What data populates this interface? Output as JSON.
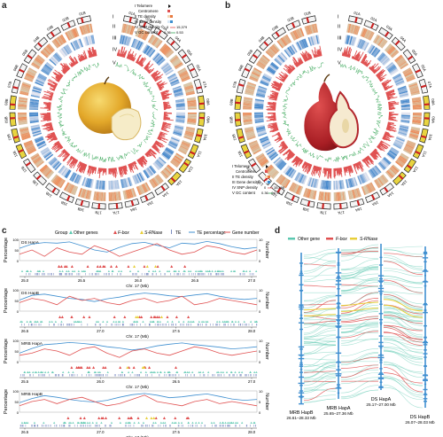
{
  "panel_labels": {
    "a": "a",
    "b": "b",
    "c": "c",
    "d": "d"
  },
  "colors": {
    "orange": "#e88a55",
    "blue": "#3f8fd0",
    "red": "#e05050",
    "green": "#3ba85a",
    "teal": "#5cc8b0",
    "yellow": "#e8cf3a",
    "gray": "#999999"
  },
  "circos_a": {
    "chromosomes": [
      "01A",
      "02A",
      "03A",
      "04A",
      "05A",
      "06A",
      "07A",
      "08A",
      "09A",
      "10A",
      "11A",
      "12A",
      "13A",
      "14A",
      "15A",
      "16A",
      "17A",
      "17B",
      "16B",
      "15B",
      "14B",
      "13B",
      "12B",
      "11B",
      "10B",
      "09B",
      "08B",
      "07B",
      "06B",
      "05B",
      "04B",
      "03B",
      "02B",
      "01B"
    ],
    "ring_labels": [
      "I",
      "II",
      "III",
      "IV",
      "V"
    ],
    "legend": {
      "telomere": "I Telomere",
      "centromere": "Centromere",
      "te": "II TE density",
      "gene": "III Gene density",
      "snp": "IV SNP density",
      "gc": "V GC content",
      "snp_min": "0",
      "snp_max": "15,379",
      "gc_min": "0.36",
      "gc_max": "0.53"
    }
  },
  "circos_b": {
    "chromosomes": [
      "01A",
      "02A",
      "03A",
      "04A",
      "05A",
      "06A",
      "07A",
      "08A",
      "09A",
      "10A",
      "11A",
      "12A",
      "13A",
      "14A",
      "15A",
      "16A",
      "17A",
      "17B",
      "16B",
      "15B",
      "14B",
      "13B",
      "12B",
      "11B",
      "10B",
      "09B",
      "08B",
      "07B",
      "06B",
      "05B",
      "04B",
      "03B",
      "02B",
      "01B"
    ],
    "ring_labels": [
      "I",
      "II",
      "III",
      "IV",
      "V"
    ],
    "legend": {
      "telomere": "I Telomere",
      "centromere": "Centromere",
      "te": "II TE density",
      "gene": "III Gene density",
      "snp": "IV SNP density",
      "gc": "V GC content",
      "snp_min": "0",
      "snp_max": "15,498",
      "gc_min": "0.36",
      "gc_max": "0.51"
    }
  },
  "panel_c": {
    "legend": {
      "group": "Group",
      "other": "Other genes",
      "fbox": "F-box",
      "srnase": "S-RNase",
      "te": "TE",
      "te_pct": "TE percentage",
      "gene_num": "Gene number"
    },
    "ylabel_left": "Percentage",
    "ylabel_right": "Number",
    "xlabel": "Chr. 17 (Mb)",
    "tracks": [
      {
        "name": "DS HapA",
        "y_left": [
          "100",
          "50",
          "0"
        ],
        "y_right": [
          "10",
          "5",
          "0"
        ],
        "ticks": [
          "25.0",
          "25.5",
          "26.0",
          "26.5",
          "27.0"
        ],
        "te": [
          58,
          78,
          85,
          82,
          88,
          70,
          50,
          40,
          62,
          80,
          86,
          72,
          60,
          82,
          78,
          90,
          80,
          65,
          55,
          62
        ],
        "genes": [
          3,
          5,
          2,
          6,
          4,
          3,
          7,
          5,
          2,
          4,
          6,
          8,
          5,
          3,
          4,
          7,
          6,
          4,
          3,
          5
        ]
      },
      {
        "name": "DS HapB",
        "y_left": [
          "100",
          "50",
          "0"
        ],
        "y_right": [
          "10",
          "5",
          "0"
        ],
        "ticks": [
          "26.5",
          "27.0",
          "27.5",
          "28.0"
        ],
        "te": [
          52,
          74,
          80,
          70,
          60,
          55,
          45,
          58,
          66,
          78,
          85,
          80,
          72,
          68,
          76,
          82,
          70,
          60,
          55,
          60
        ],
        "genes": [
          4,
          6,
          5,
          3,
          7,
          5,
          6,
          4,
          3,
          5,
          6,
          4,
          5,
          7,
          3,
          4,
          6,
          5,
          4,
          3
        ]
      },
      {
        "name": "MRB HapA",
        "y_left": [
          "100",
          "50",
          "0"
        ],
        "y_right": [
          "10",
          "5",
          "0"
        ],
        "ticks": [
          "25.5",
          "26.0",
          "26.5",
          "27.0"
        ],
        "te": [
          40,
          62,
          80,
          84,
          90,
          86,
          80,
          70,
          64,
          55,
          62,
          74,
          82,
          88,
          80,
          74,
          68,
          60,
          64,
          70
        ],
        "genes": [
          3,
          4,
          6,
          5,
          3,
          6,
          7,
          4,
          2,
          5,
          6,
          4,
          3,
          5,
          7,
          6,
          4,
          3,
          4,
          5
        ],
        "srnase_label": "S-RNase"
      },
      {
        "name": "MRB HapB",
        "y_left": [
          "100",
          "50",
          "0"
        ],
        "y_right": [
          "10",
          "5",
          "0"
        ],
        "ticks": [
          "26.5",
          "27.0",
          "27.5",
          "28.0"
        ],
        "te": [
          45,
          64,
          78,
          70,
          60,
          52,
          48,
          56,
          70,
          82,
          88,
          80,
          68,
          72,
          80,
          86,
          74,
          62,
          56,
          60
        ],
        "genes": [
          3,
          5,
          6,
          4,
          6,
          7,
          5,
          3,
          4,
          6,
          8,
          5,
          4,
          3,
          5,
          6,
          4,
          5,
          4,
          3
        ]
      }
    ]
  },
  "panel_d": {
    "legend": {
      "other": "Other gene",
      "fbox": "F-box",
      "srnase": "S-RNase"
    },
    "haps": [
      {
        "name": "MRB HapB",
        "range": "26.61–28.33 Mb"
      },
      {
        "name": "MRB HapA",
        "range": "25.65–27.36 Mb"
      },
      {
        "name": "DS HapA",
        "range": "25.17–27.00 Mb"
      },
      {
        "name": "DS HapB",
        "range": "26.07–28.03 Mb"
      }
    ]
  }
}
